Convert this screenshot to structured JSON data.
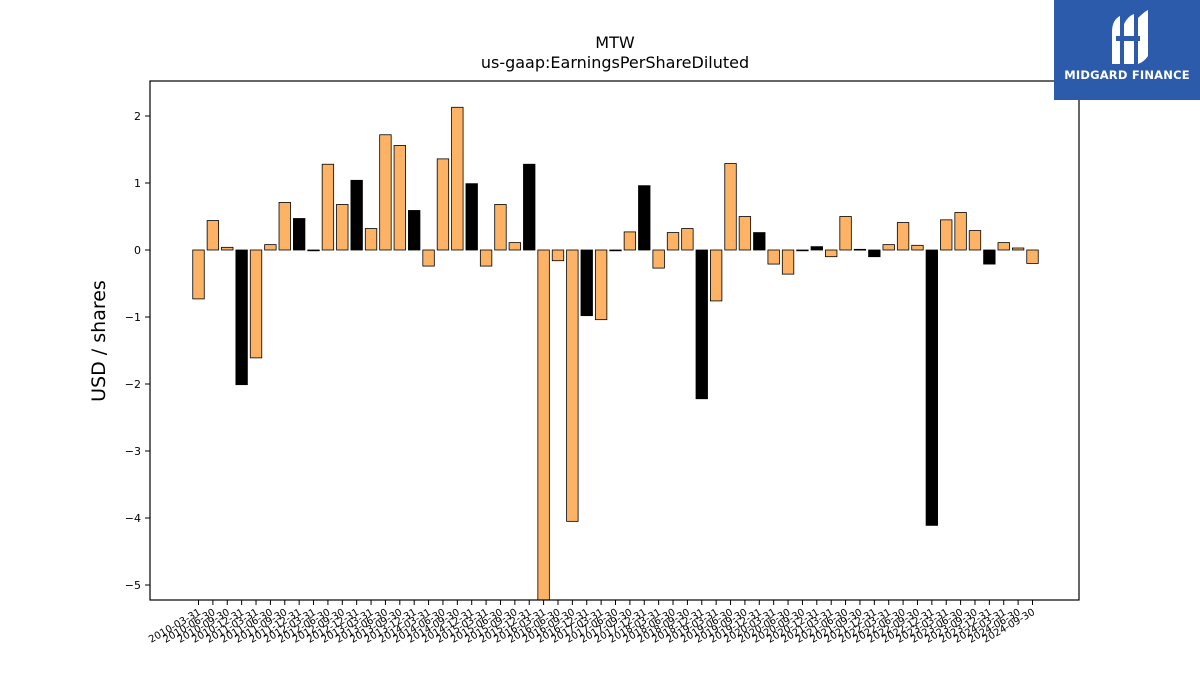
{
  "brand": {
    "name": "MIDGARD FINANCE",
    "logo_icon": "midgard-monogram-icon",
    "color": "#2d5bab"
  },
  "colors": {
    "highlight": "#fdb366",
    "alternate": "#000000",
    "edge": "#000000"
  },
  "chart_data": {
    "type": "bar",
    "title": "MTW",
    "subtitle": "us-gaap:EarningsPerShareDiluted",
    "xlabel": "",
    "ylabel": "USD / shares",
    "ylim": [
      -5.25,
      2.5
    ],
    "yticks": [
      2,
      1,
      0,
      -1,
      -2,
      -3,
      -4,
      -5
    ],
    "ytick_labels": [
      "2",
      "1",
      "0",
      "−1",
      "−2",
      "−3",
      "−4",
      "−5"
    ],
    "grid": false,
    "legend": "none",
    "categories": [
      "2010-03-31",
      "2010-06-30",
      "2010-09-30",
      "2010-12-31",
      "2011-03-31",
      "2011-06-30",
      "2011-09-30",
      "2011-12-31",
      "2012-03-31",
      "2012-06-30",
      "2012-09-30",
      "2012-12-31",
      "2013-03-31",
      "2013-06-30",
      "2013-09-30",
      "2013-12-31",
      "2014-03-31",
      "2014-06-30",
      "2014-09-30",
      "2014-12-31",
      "2015-03-31",
      "2015-06-30",
      "2015-09-30",
      "2015-12-31",
      "2016-03-31",
      "2016-06-30",
      "2016-09-30",
      "2016-12-31",
      "2017-03-31",
      "2017-06-30",
      "2017-09-30",
      "2017-12-31",
      "2018-03-31",
      "2018-06-30",
      "2018-09-30",
      "2018-12-31",
      "2019-03-31",
      "2019-06-30",
      "2019-09-30",
      "2019-12-31",
      "2020-03-31",
      "2020-06-30",
      "2020-09-30",
      "2020-12-31",
      "2021-03-31",
      "2021-06-30",
      "2021-09-30",
      "2021-12-31",
      "2022-03-31",
      "2022-06-30",
      "2022-09-30",
      "2022-12-31",
      "2023-03-31",
      "2023-06-30",
      "2023-09-30",
      "2023-12-31",
      "2024-03-31",
      "2024-06-30",
      "2024-09-30"
    ],
    "values": [
      -0.73,
      0.44,
      0.04,
      -2.01,
      -1.61,
      0.08,
      0.71,
      0.47,
      -0.01,
      1.28,
      0.68,
      1.04,
      0.32,
      1.72,
      1.56,
      0.59,
      -0.24,
      1.36,
      2.13,
      0.99,
      -0.24,
      0.68,
      0.11,
      1.28,
      -5.25,
      -0.16,
      -4.05,
      -0.98,
      -1.04,
      -0.01,
      0.27,
      0.96,
      -0.27,
      0.26,
      0.32,
      -2.22,
      -0.76,
      1.29,
      0.5,
      0.26,
      -0.21,
      -0.36,
      -0.01,
      0.05,
      -0.1,
      0.5,
      0.01,
      -0.1,
      0.08,
      0.41,
      0.07,
      -4.11,
      0.45,
      0.56,
      0.29,
      -0.21,
      0.11,
      0.03,
      -0.2
    ],
    "bar_colors": [
      "#fdb366",
      "#fdb366",
      "#fdb366",
      "#000000",
      "#fdb366",
      "#fdb366",
      "#fdb366",
      "#000000",
      "#fdb366",
      "#fdb366",
      "#fdb366",
      "#000000",
      "#fdb366",
      "#fdb366",
      "#fdb366",
      "#000000",
      "#fdb366",
      "#fdb366",
      "#fdb366",
      "#000000",
      "#fdb366",
      "#fdb366",
      "#fdb366",
      "#000000",
      "#fdb366",
      "#fdb366",
      "#fdb366",
      "#000000",
      "#fdb366",
      "#fdb366",
      "#fdb366",
      "#000000",
      "#fdb366",
      "#fdb366",
      "#fdb366",
      "#000000",
      "#fdb366",
      "#fdb366",
      "#fdb366",
      "#000000",
      "#fdb366",
      "#fdb366",
      "#fdb366",
      "#000000",
      "#fdb366",
      "#fdb366",
      "#fdb366",
      "#000000",
      "#fdb366",
      "#fdb366",
      "#fdb366",
      "#000000",
      "#fdb366",
      "#fdb366",
      "#fdb366",
      "#000000",
      "#fdb366",
      "#fdb366",
      "#fdb366"
    ]
  }
}
